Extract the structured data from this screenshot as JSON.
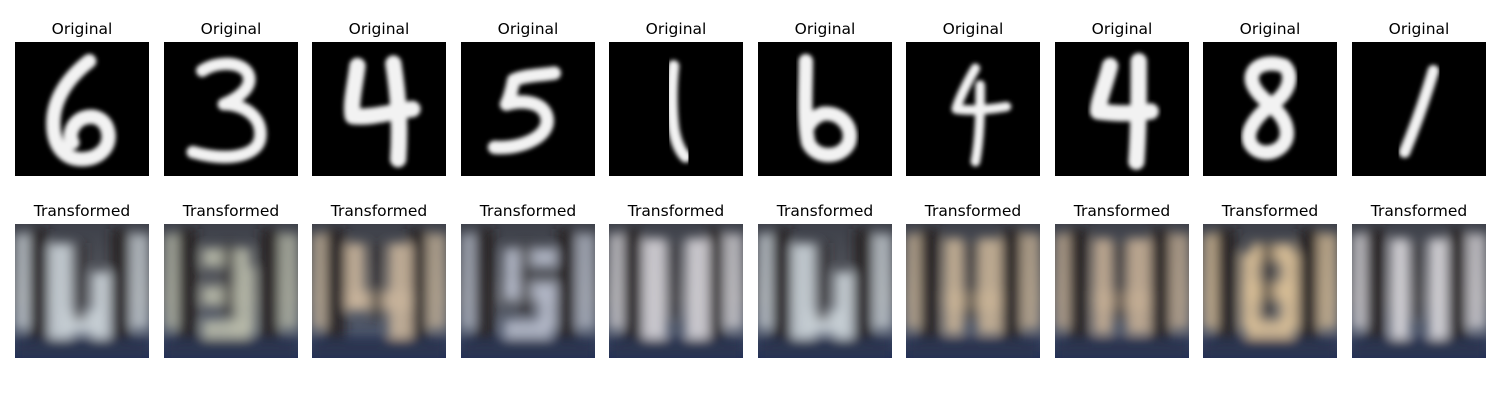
{
  "figure": {
    "rows": [
      {
        "row_type": "original",
        "panels": [
          {
            "title": "Original",
            "digit": "6"
          },
          {
            "title": "Original",
            "digit": "3"
          },
          {
            "title": "Original",
            "digit": "4"
          },
          {
            "title": "Original",
            "digit": "5"
          },
          {
            "title": "Original",
            "digit": "1"
          },
          {
            "title": "Original",
            "digit": "6"
          },
          {
            "title": "Original",
            "digit": "4"
          },
          {
            "title": "Original",
            "digit": "4"
          },
          {
            "title": "Original",
            "digit": "8"
          },
          {
            "title": "Original",
            "digit": "1"
          }
        ]
      },
      {
        "row_type": "transformed",
        "panels": [
          {
            "title": "Transformed",
            "digit": "6"
          },
          {
            "title": "Transformed",
            "digit": "3"
          },
          {
            "title": "Transformed",
            "digit": "4"
          },
          {
            "title": "Transformed",
            "digit": "5"
          },
          {
            "title": "Transformed",
            "digit": "1"
          },
          {
            "title": "Transformed",
            "digit": "6"
          },
          {
            "title": "Transformed",
            "digit": "4"
          },
          {
            "title": "Transformed",
            "digit": "4"
          },
          {
            "title": "Transformed",
            "digit": "8"
          },
          {
            "title": "Transformed",
            "digit": "1"
          }
        ]
      }
    ],
    "colors": {
      "background": "#ffffff",
      "original_bg": "#000000",
      "original_stroke": "#f2f2f2",
      "transformed_bg_top": "#4a4f58",
      "transformed_bg_bottom": "#2b3550",
      "transformed_bar": "#252020",
      "transformed_light": "#c8ccd2"
    }
  }
}
